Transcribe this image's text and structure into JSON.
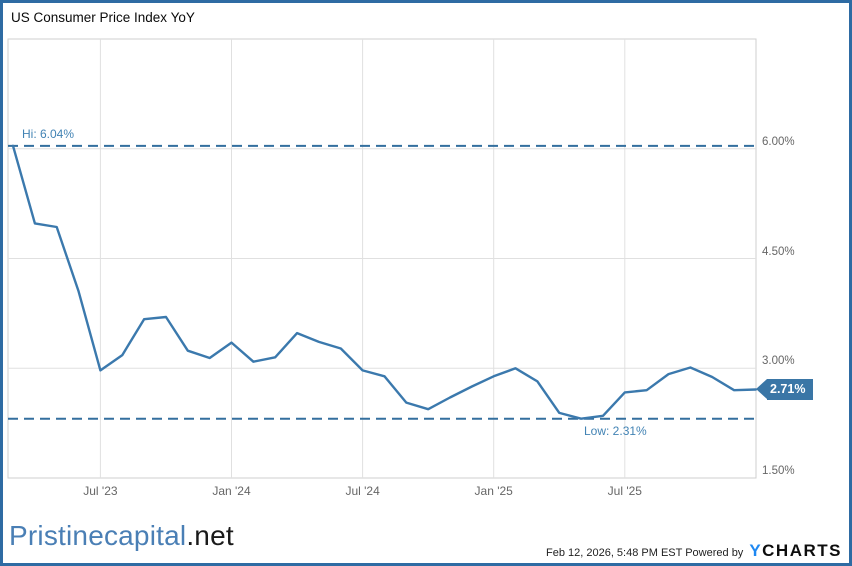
{
  "title": "US Consumer Price Index YoY",
  "chart_data": {
    "type": "line",
    "title": "US Consumer Price Index YoY",
    "unit": "percent",
    "months": [
      "Feb '23",
      "Mar '23",
      "Apr '23",
      "May '23",
      "Jun '23",
      "Jul '23",
      "Aug '23",
      "Sep '23",
      "Oct '23",
      "Nov '23",
      "Dec '23",
      "Jan '24",
      "Feb '24",
      "Mar '24",
      "Apr '24",
      "May '24",
      "Jun '24",
      "Jul '24",
      "Aug '24",
      "Sep '24",
      "Oct '24",
      "Nov '24",
      "Dec '24",
      "Jan '25",
      "Feb '25",
      "Mar '25",
      "Apr '25",
      "May '25",
      "Jun '25",
      "Jul '25",
      "Aug '25",
      "Sep '25",
      "Oct '25",
      "Nov '25",
      "Dec '25"
    ],
    "values": [
      6.04,
      4.98,
      4.93,
      4.05,
      2.97,
      3.18,
      3.67,
      3.7,
      3.24,
      3.14,
      3.35,
      3.09,
      3.15,
      3.48,
      3.36,
      3.27,
      2.97,
      2.89,
      2.53,
      2.44,
      2.6,
      2.75,
      2.89,
      3.0,
      2.82,
      2.39,
      2.31,
      2.35,
      2.67,
      2.7,
      2.92,
      3.01,
      2.88,
      2.7,
      2.71
    ],
    "x_tick_labels": [
      "Jul '23",
      "Jan '24",
      "Jul '24",
      "Jan '25",
      "Jul '25"
    ],
    "x_tick_indices": [
      4,
      10,
      16,
      22,
      28
    ],
    "y_ticks": [
      {
        "label": "6.00%",
        "value": 6.0
      },
      {
        "label": "4.50%",
        "value": 4.5
      },
      {
        "label": "3.00%",
        "value": 3.0
      },
      {
        "label": "1.50%",
        "value": 1.5
      }
    ],
    "ylim": [
      1.5,
      7.5
    ],
    "grid": true,
    "hi": {
      "label": "Hi: 6.04%",
      "value": 6.04
    },
    "low": {
      "label": "Low: 2.31%",
      "value": 2.31
    },
    "current": {
      "label": "2.71%",
      "value": 2.71
    },
    "colors": {
      "line": "#3b79ad",
      "dashed": "#336f9e",
      "hilo_text": "#4283b4",
      "tag_bg": "#3a76a6",
      "grid": "#e0e0e0",
      "plot_border": "#cfcfcf",
      "axis_text": "#666666",
      "frame_border": "#2e6ba3"
    }
  },
  "footer": {
    "brand_primary": "Pristinecapital",
    "brand_suffix": ".net",
    "timestamp": "Feb 12, 2026, 5:48 PM EST",
    "powered_by": "Powered by",
    "logo_y": "Y",
    "logo_charts": "CHARTS"
  }
}
